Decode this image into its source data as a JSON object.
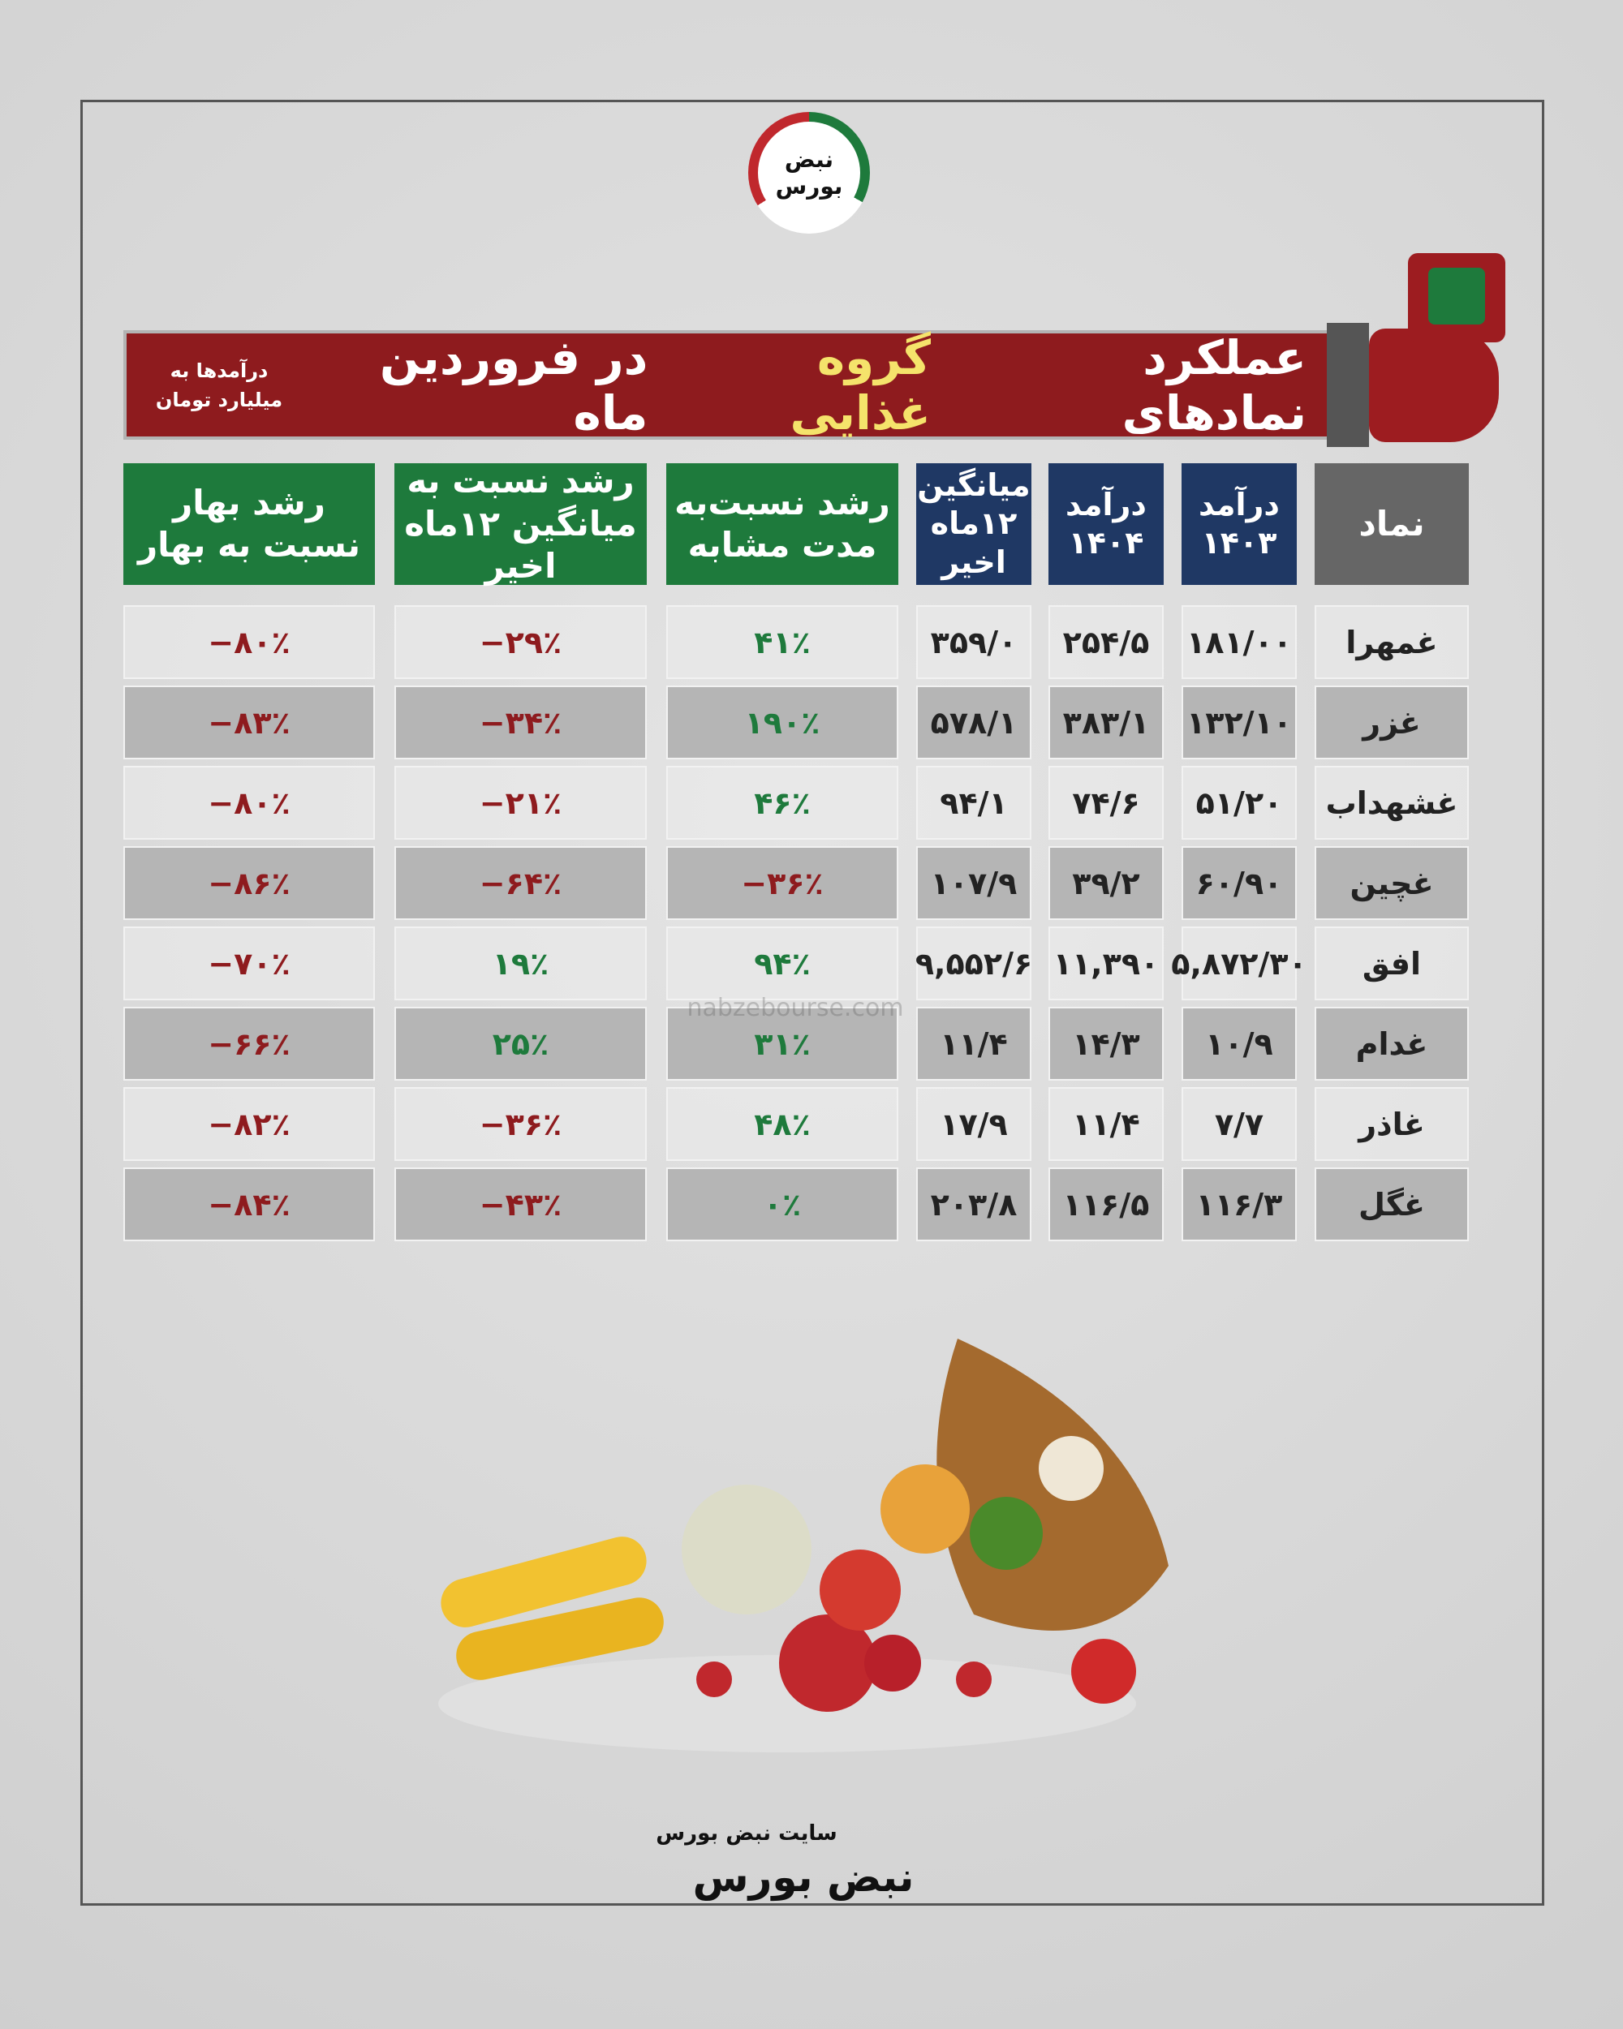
{
  "logo": {
    "text": "نبض بورس"
  },
  "header": {
    "title_before": "عملکرد نمادهای",
    "title_highlight": "گروه غذایی",
    "title_after": "در فروردین ماه",
    "note": "درآمدها به میلیارد تومان"
  },
  "table": {
    "columns": [
      "نماد",
      "درآمد ۱۴۰۳",
      "درآمد ۱۴۰۴",
      "میانگین ۱۲ماه اخیر",
      "رشد نسبت‌به مدت مشابه",
      "رشد نسبت به میانگین ۱۲ماه اخیر",
      "رشد بهار نسبت به بهار"
    ],
    "rows": [
      [
        "غمهرا",
        "۱۸۱/۰۰",
        "۲۵۴/۵",
        "۳۵۹/۰",
        "۴۱٪",
        "−۲۹٪",
        "−۸۰٪"
      ],
      [
        "غزر",
        "۱۳۲/۱۰",
        "۳۸۳/۱",
        "۵۷۸/۱",
        "۱۹۰٪",
        "−۳۴٪",
        "−۸۳٪"
      ],
      [
        "غشهداب",
        "۵۱/۲۰",
        "۷۴/۶",
        "۹۴/۱",
        "۴۶٪",
        "−۲۱٪",
        "−۸۰٪"
      ],
      [
        "غچین",
        "۶۰/۹۰",
        "۳۹/۲",
        "۱۰۷/۹",
        "−۳۶٪",
        "−۶۴٪",
        "−۸۶٪"
      ],
      [
        "افق",
        "۵,۸۷۲/۳۰",
        "۱۱,۳۹۰",
        "۹,۵۵۲/۶",
        "۹۴٪",
        "۱۹٪",
        "−۷۰٪"
      ],
      [
        "غدام",
        "۱۰/۹",
        "۱۴/۳",
        "۱۱/۴",
        "۳۱٪",
        "۲۵٪",
        "−۶۶٪"
      ],
      [
        "غاذر",
        "۷/۷",
        "۱۱/۴",
        "۱۷/۹",
        "۴۸٪",
        "−۳۶٪",
        "−۸۲٪"
      ],
      [
        "غگل",
        "۱۱۶/۳",
        "۱۱۶/۵",
        "۲۰۳/۸",
        "۰٪",
        "−۴۳٪",
        "−۸۴٪"
      ]
    ]
  },
  "watermark": "nabzebourse.com",
  "footer": {
    "site": "سایت نبض بورس",
    "brand": "نبض بورس"
  }
}
